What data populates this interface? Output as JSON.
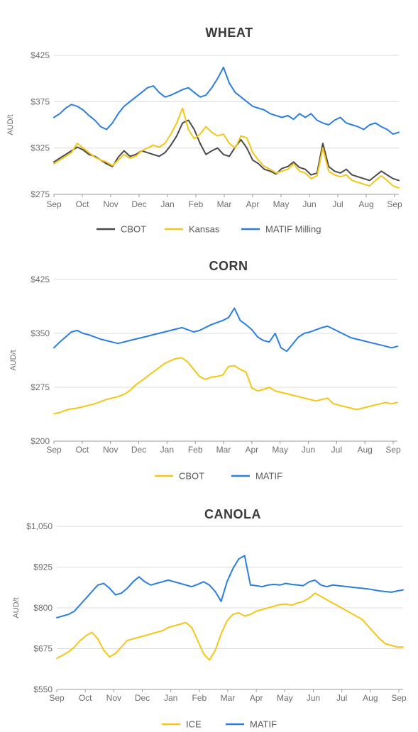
{
  "colors": {
    "cbot_wheat": "#4a4a4a",
    "yellow": "#f5c518",
    "blue": "#2a7de1"
  },
  "chart_data": [
    {
      "type": "line",
      "title": "WHEAT",
      "ylabel": "AUD/t",
      "ylim": [
        275,
        425
      ],
      "yticks": [
        275,
        325,
        375,
        425
      ],
      "ytick_labels": [
        "$275",
        "$325",
        "$375",
        "$425"
      ],
      "months": [
        "Sep",
        "Oct",
        "Nov",
        "Dec",
        "Jan",
        "Feb",
        "Mar",
        "Apr",
        "May",
        "Jun",
        "Jul",
        "Aug",
        "Sep"
      ],
      "legend_position": "bottom",
      "series": [
        {
          "name": "CBOT",
          "color": "#4a4a4a",
          "values": [
            310,
            314,
            318,
            322,
            326,
            323,
            318,
            316,
            312,
            308,
            305,
            315,
            322,
            316,
            318,
            322,
            320,
            318,
            316,
            320,
            328,
            338,
            352,
            355,
            345,
            330,
            318,
            322,
            325,
            318,
            316,
            326,
            334,
            325,
            312,
            308,
            302,
            300,
            297,
            303,
            305,
            310,
            304,
            302,
            296,
            298,
            330,
            305,
            300,
            298,
            302,
            296,
            294,
            292,
            290,
            295,
            300,
            296,
            292,
            290
          ]
        },
        {
          "name": "Kansas",
          "color": "#f5c518",
          "values": [
            308,
            312,
            316,
            320,
            330,
            325,
            320,
            315,
            312,
            310,
            306,
            312,
            318,
            314,
            316,
            322,
            325,
            328,
            326,
            330,
            340,
            352,
            368,
            345,
            335,
            340,
            348,
            342,
            338,
            340,
            330,
            325,
            338,
            336,
            320,
            312,
            305,
            302,
            298,
            300,
            302,
            308,
            300,
            298,
            292,
            295,
            325,
            300,
            296,
            294,
            296,
            290,
            288,
            286,
            284,
            290,
            295,
            290,
            284,
            282
          ]
        },
        {
          "name": "MATIF Milling",
          "color": "#2a7de1",
          "values": [
            358,
            362,
            368,
            372,
            370,
            366,
            360,
            355,
            348,
            345,
            352,
            362,
            370,
            375,
            380,
            385,
            390,
            392,
            385,
            380,
            382,
            385,
            388,
            390,
            385,
            380,
            382,
            390,
            400,
            412,
            395,
            385,
            380,
            375,
            370,
            368,
            366,
            362,
            360,
            358,
            360,
            356,
            362,
            358,
            362,
            355,
            352,
            350,
            355,
            358,
            352,
            350,
            348,
            345,
            350,
            352,
            348,
            345,
            340,
            342
          ]
        }
      ]
    },
    {
      "type": "line",
      "title": "CORN",
      "ylabel": "AUD/t",
      "ylim": [
        200,
        425
      ],
      "yticks": [
        200,
        275,
        350,
        425
      ],
      "ytick_labels": [
        "$200",
        "$275",
        "$350",
        "$425"
      ],
      "months": [
        "Sep",
        "Oct",
        "Nov",
        "Dec",
        "Jan",
        "Feb",
        "Mar",
        "Apr",
        "May",
        "Jun",
        "Jul",
        "Aug",
        "Sep"
      ],
      "legend_position": "bottom",
      "series": [
        {
          "name": "CBOT",
          "color": "#f5c518",
          "values": [
            238,
            240,
            243,
            245,
            246,
            248,
            250,
            252,
            255,
            258,
            260,
            262,
            265,
            270,
            278,
            284,
            290,
            296,
            302,
            308,
            312,
            315,
            316,
            310,
            300,
            290,
            286,
            289,
            290,
            292,
            304,
            305,
            300,
            296,
            274,
            270,
            272,
            275,
            270,
            268,
            266,
            264,
            262,
            260,
            258,
            256,
            258,
            260,
            252,
            250,
            248,
            246,
            244,
            246,
            248,
            250,
            252,
            254,
            252,
            254
          ]
        },
        {
          "name": "MATIF",
          "color": "#2a7de1",
          "values": [
            330,
            338,
            345,
            352,
            354,
            350,
            348,
            345,
            342,
            340,
            338,
            336,
            338,
            340,
            342,
            344,
            346,
            348,
            350,
            352,
            354,
            356,
            358,
            355,
            352,
            354,
            358,
            362,
            365,
            368,
            372,
            385,
            368,
            362,
            355,
            345,
            340,
            338,
            350,
            330,
            325,
            335,
            345,
            350,
            352,
            355,
            358,
            360,
            356,
            352,
            348,
            344,
            342,
            340,
            338,
            336,
            334,
            332,
            330,
            332
          ]
        }
      ]
    },
    {
      "type": "line",
      "title": "CANOLA",
      "ylabel": "AUD/t",
      "ylim": [
        550,
        1050
      ],
      "yticks": [
        550,
        675,
        800,
        925,
        1050
      ],
      "ytick_labels": [
        "$550",
        "$675",
        "$800",
        "$925",
        "$1,050"
      ],
      "months": [
        "Sep",
        "Oct",
        "Nov",
        "Dec",
        "Jan",
        "Feb",
        "Mar",
        "Apr",
        "May",
        "Jun",
        "Jul",
        "Aug",
        "Sep"
      ],
      "legend_position": "bottom",
      "series": [
        {
          "name": "ICE",
          "color": "#f5c518",
          "values": [
            645,
            655,
            665,
            680,
            700,
            715,
            725,
            705,
            670,
            650,
            660,
            680,
            700,
            705,
            710,
            715,
            720,
            725,
            730,
            740,
            745,
            750,
            755,
            740,
            700,
            660,
            640,
            670,
            720,
            760,
            780,
            785,
            775,
            780,
            790,
            795,
            800,
            805,
            810,
            812,
            808,
            815,
            820,
            830,
            845,
            835,
            825,
            815,
            805,
            795,
            785,
            775,
            765,
            745,
            725,
            705,
            690,
            685,
            680,
            680
          ]
        },
        {
          "name": "MATIF",
          "color": "#2a7de1",
          "values": [
            770,
            775,
            780,
            790,
            810,
            830,
            850,
            870,
            875,
            860,
            840,
            845,
            860,
            880,
            895,
            880,
            870,
            875,
            880,
            885,
            880,
            875,
            870,
            865,
            872,
            880,
            870,
            850,
            820,
            880,
            920,
            950,
            960,
            870,
            868,
            865,
            870,
            872,
            870,
            875,
            872,
            870,
            868,
            880,
            885,
            870,
            865,
            870,
            868,
            866,
            864,
            862,
            860,
            858,
            855,
            852,
            850,
            848,
            852,
            855
          ]
        }
      ]
    }
  ]
}
